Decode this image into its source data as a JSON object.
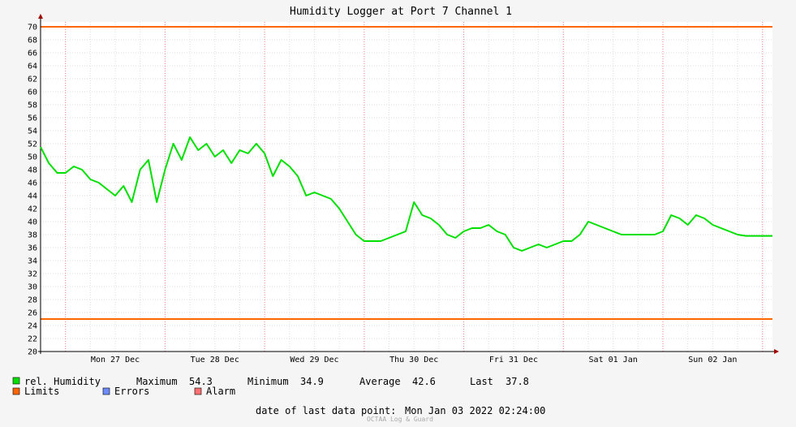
{
  "colors": {
    "humidity": "#00e000",
    "limits": "#ff6600",
    "errors": "#6f8cff",
    "alarm": "#ff7070",
    "grid_major": "#f08080",
    "grid_minor": "#dddddd",
    "background": "#f5f5f5",
    "plot_bg": "#ffffff"
  },
  "legend": {
    "series_label": "rel. Humidity",
    "max_label": "Maximum",
    "max_value": "54.3",
    "min_label": "Minimum",
    "min_value": "34.9",
    "avg_label": "Average",
    "avg_value": "42.6",
    "last_label": "Last",
    "last_value": "37.8",
    "limits_label": "Limits",
    "errors_label": "Errors",
    "alarm_label": "Alarm"
  },
  "footer": {
    "last_point_label": "date of last data point:",
    "last_point_value": "Mon Jan 03 2022 02:24:00",
    "watermark": "OCTAA Log & Guard"
  },
  "chart_data": {
    "type": "line",
    "title": "Humidity Logger at Port 7 Channel 1",
    "ylim": [
      20,
      70
    ],
    "y_ticks": [
      20,
      22,
      24,
      26,
      28,
      30,
      32,
      34,
      36,
      38,
      40,
      42,
      44,
      46,
      48,
      50,
      52,
      54,
      56,
      58,
      60,
      62,
      64,
      66,
      68,
      70
    ],
    "xlim": [
      "2021-12-26T18:00",
      "2022-01-03T02:24"
    ],
    "x_ticks": [
      {
        "label": "Mon 27 Dec",
        "x": "2021-12-27T12:00"
      },
      {
        "label": "Tue 28 Dec",
        "x": "2021-12-28T12:00"
      },
      {
        "label": "Wed 29 Dec",
        "x": "2021-12-29T12:00"
      },
      {
        "label": "Thu 30 Dec",
        "x": "2021-12-30T12:00"
      },
      {
        "label": "Fri 31 Dec",
        "x": "2021-12-31T12:00"
      },
      {
        "label": "Sat 01 Jan",
        "x": "2022-01-01T12:00"
      },
      {
        "label": "Sun 02 Jan",
        "x": "2022-01-02T12:00"
      }
    ],
    "limits": [
      70,
      25
    ],
    "grid": true,
    "series": [
      {
        "name": "rel. Humidity",
        "x": [
          "2021-12-26T18:00",
          "2021-12-26T20:00",
          "2021-12-26T22:00",
          "2021-12-27T00:00",
          "2021-12-27T02:00",
          "2021-12-27T04:00",
          "2021-12-27T06:00",
          "2021-12-27T08:00",
          "2021-12-27T10:00",
          "2021-12-27T12:00",
          "2021-12-27T14:00",
          "2021-12-27T16:00",
          "2021-12-27T18:00",
          "2021-12-27T20:00",
          "2021-12-27T22:00",
          "2021-12-28T00:00",
          "2021-12-28T02:00",
          "2021-12-28T04:00",
          "2021-12-28T06:00",
          "2021-12-28T08:00",
          "2021-12-28T10:00",
          "2021-12-28T12:00",
          "2021-12-28T14:00",
          "2021-12-28T16:00",
          "2021-12-28T18:00",
          "2021-12-28T20:00",
          "2021-12-28T22:00",
          "2021-12-29T00:00",
          "2021-12-29T02:00",
          "2021-12-29T04:00",
          "2021-12-29T06:00",
          "2021-12-29T08:00",
          "2021-12-29T10:00",
          "2021-12-29T12:00",
          "2021-12-29T14:00",
          "2021-12-29T16:00",
          "2021-12-29T18:00",
          "2021-12-29T20:00",
          "2021-12-29T22:00",
          "2021-12-30T00:00",
          "2021-12-30T02:00",
          "2021-12-30T04:00",
          "2021-12-30T06:00",
          "2021-12-30T08:00",
          "2021-12-30T10:00",
          "2021-12-30T12:00",
          "2021-12-30T14:00",
          "2021-12-30T16:00",
          "2021-12-30T18:00",
          "2021-12-30T20:00",
          "2021-12-30T22:00",
          "2021-12-31T00:00",
          "2021-12-31T02:00",
          "2021-12-31T04:00",
          "2021-12-31T06:00",
          "2021-12-31T08:00",
          "2021-12-31T10:00",
          "2021-12-31T12:00",
          "2021-12-31T14:00",
          "2021-12-31T16:00",
          "2021-12-31T18:00",
          "2021-12-31T20:00",
          "2021-12-31T22:00",
          "2022-01-01T00:00",
          "2022-01-01T02:00",
          "2022-01-01T04:00",
          "2022-01-01T06:00",
          "2022-01-01T08:00",
          "2022-01-01T10:00",
          "2022-01-01T12:00",
          "2022-01-01T14:00",
          "2022-01-01T16:00",
          "2022-01-01T18:00",
          "2022-01-01T20:00",
          "2022-01-01T22:00",
          "2022-01-02T00:00",
          "2022-01-02T02:00",
          "2022-01-02T04:00",
          "2022-01-02T06:00",
          "2022-01-02T08:00",
          "2022-01-02T10:00",
          "2022-01-02T12:00",
          "2022-01-02T14:00",
          "2022-01-02T16:00",
          "2022-01-02T18:00",
          "2022-01-02T20:00",
          "2022-01-02T22:00",
          "2022-01-03T00:00",
          "2022-01-03T02:24"
        ],
        "values": [
          51.5,
          49,
          47.5,
          47.5,
          48.5,
          48,
          46.5,
          46,
          45,
          44,
          45.5,
          43,
          48,
          49.5,
          43,
          48,
          52,
          49.5,
          53,
          51,
          52,
          50,
          51,
          49,
          51,
          50.5,
          52,
          50.5,
          47,
          49.5,
          48.5,
          47,
          44,
          44.5,
          44,
          43.5,
          42,
          40,
          38,
          37,
          37,
          37,
          37.5,
          38,
          38.5,
          43,
          41,
          40.5,
          39.5,
          38,
          37.5,
          38.5,
          39,
          39,
          39.5,
          38.5,
          38,
          36,
          35.5,
          36,
          36.5,
          36,
          36.5,
          37,
          37,
          38,
          40,
          39.5,
          39,
          38.5,
          38,
          38,
          38,
          38,
          38,
          38.5,
          41,
          40.5,
          39.5,
          41,
          40.5,
          39.5,
          39,
          38.5,
          38,
          37.8,
          37.8,
          37.8,
          37.8
        ]
      }
    ]
  }
}
